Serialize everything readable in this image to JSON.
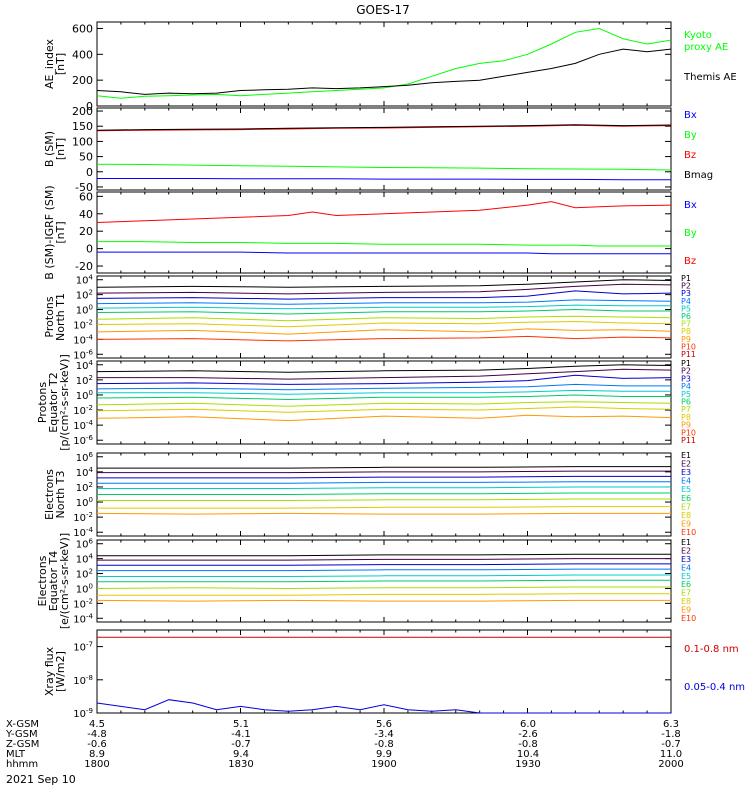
{
  "title": "GOES-17",
  "date_label": "2021 Sep 10",
  "orbit_table": {
    "labels": [
      "X-GSM",
      "Y-GSM",
      "Z-GSM",
      "MLT",
      "hhmm"
    ],
    "columns": [
      [
        "4.5",
        "-4.8",
        "-0.6",
        "8.9",
        "1800"
      ],
      [
        "5.1",
        "-4.1",
        "-0.7",
        "9.4",
        "1830"
      ],
      [
        "5.6",
        "-3.4",
        "-0.8",
        "9.9",
        "1900"
      ],
      [
        "6.0",
        "-2.6",
        "-0.8",
        "10.4",
        "1930"
      ],
      [
        "6.3",
        "-1.8",
        "-0.7",
        "11.0",
        "2000"
      ]
    ]
  },
  "colors": {
    "black": "#000000",
    "blue": "#0000ff",
    "green": "#00ff00",
    "red": "#ff0000",
    "dark_red": "#990000",
    "xray_red": "#cc0000",
    "xray_blue": "#0000dd",
    "proton_channels": [
      "#000000",
      "#440044",
      "#0000cc",
      "#0077ff",
      "#00cccc",
      "#00cc66",
      "#aadd00",
      "#ddcc00",
      "#ff9900",
      "#ff3300",
      "#cc0000"
    ],
    "electron_channels": [
      "#000000",
      "#440044",
      "#0000cc",
      "#0077ff",
      "#00cccc",
      "#00cc66",
      "#aadd00",
      "#ddcc00",
      "#ff9900",
      "#ff3300"
    ]
  },
  "chart_data": [
    {
      "type": "line",
      "panel": "ae_index",
      "ylabel": [
        "AE_index",
        "[nT]"
      ],
      "ylim": [
        0,
        650
      ],
      "yticks": [
        {
          "v": 0,
          "label": "0"
        },
        {
          "v": 200,
          "label": "200"
        },
        {
          "v": 400,
          "label": "400"
        },
        {
          "v": 600,
          "label": "600"
        }
      ],
      "x": [
        0,
        5,
        10,
        15,
        20,
        25,
        30,
        35,
        40,
        45,
        50,
        55,
        60,
        65,
        70,
        75,
        80,
        85,
        90,
        95,
        100,
        105,
        110,
        115,
        120
      ],
      "series": [
        {
          "name": "Kyoto proxy AE",
          "legend_lines": [
            "Kyoto",
            "proxy AE"
          ],
          "color": "green",
          "values": [
            80,
            60,
            75,
            80,
            85,
            90,
            80,
            90,
            100,
            110,
            120,
            130,
            140,
            170,
            230,
            290,
            330,
            350,
            400,
            480,
            570,
            600,
            520,
            480,
            510
          ]
        },
        {
          "name": "Themis AE",
          "legend_lines": [
            "Themis AE"
          ],
          "color": "black",
          "values": [
            120,
            110,
            90,
            100,
            95,
            100,
            120,
            125,
            130,
            140,
            135,
            140,
            150,
            160,
            180,
            190,
            200,
            230,
            260,
            290,
            330,
            400,
            440,
            420,
            440
          ]
        }
      ]
    },
    {
      "type": "line",
      "panel": "b_sm",
      "ylabel": [
        "B (SM)",
        "[nT]"
      ],
      "ylim": [
        -60,
        210
      ],
      "yticks": [
        {
          "v": -50,
          "label": "-50"
        },
        {
          "v": 0,
          "label": "0"
        },
        {
          "v": 50,
          "label": "50"
        },
        {
          "v": 100,
          "label": "100"
        },
        {
          "v": 150,
          "label": "150"
        },
        {
          "v": 200,
          "label": "200"
        }
      ],
      "x": [
        0,
        10,
        20,
        30,
        40,
        50,
        60,
        70,
        80,
        90,
        100,
        110,
        120
      ],
      "series": [
        {
          "name": "Bx",
          "legend_lines": [
            "Bx"
          ],
          "color": "blue",
          "values": [
            -22,
            -22,
            -22,
            -23,
            -23,
            -23,
            -24,
            -24,
            -24,
            -25,
            -25,
            -26,
            -26
          ]
        },
        {
          "name": "By",
          "legend_lines": [
            "By"
          ],
          "color": "green",
          "values": [
            25,
            24,
            22,
            20,
            18,
            16,
            14,
            13,
            12,
            10,
            9,
            8,
            6
          ]
        },
        {
          "name": "Bz",
          "legend_lines": [
            "Bz"
          ],
          "color": "red",
          "values": [
            135,
            137,
            138,
            139,
            141,
            143,
            144,
            146,
            148,
            150,
            153,
            150,
            152
          ]
        },
        {
          "name": "Bmag",
          "legend_lines": [
            "Bmag"
          ],
          "color": "black",
          "values": [
            137,
            139,
            140,
            141,
            143,
            145,
            146,
            148,
            150,
            152,
            155,
            152,
            154
          ]
        }
      ]
    },
    {
      "type": "line",
      "panel": "b_igrf",
      "ylabel": [
        "B (SM)-IGRF (SM)",
        "[nT]"
      ],
      "ylim": [
        -28,
        65
      ],
      "yticks": [
        {
          "v": -20,
          "label": "-20"
        },
        {
          "v": 0,
          "label": "0"
        },
        {
          "v": 20,
          "label": "20"
        },
        {
          "v": 40,
          "label": "40"
        },
        {
          "v": 60,
          "label": "60"
        }
      ],
      "x": [
        0,
        10,
        20,
        30,
        40,
        45,
        50,
        60,
        70,
        80,
        90,
        95,
        100,
        105,
        110,
        120
      ],
      "series": [
        {
          "name": "Bx",
          "legend_lines": [
            "Bx"
          ],
          "color": "blue",
          "values": [
            -4,
            -4,
            -4,
            -4,
            -5,
            -5,
            -5,
            -5,
            -5,
            -5,
            -5,
            -6,
            -6,
            -6,
            -6,
            -6
          ]
        },
        {
          "name": "By",
          "legend_lines": [
            "By"
          ],
          "color": "green",
          "values": [
            8,
            8,
            7,
            7,
            6,
            6,
            6,
            5,
            5,
            5,
            4,
            4,
            4,
            3,
            3,
            3
          ]
        },
        {
          "name": "Bz",
          "legend_lines": [
            "Bz"
          ],
          "color": "red",
          "values": [
            30,
            32,
            34,
            36,
            38,
            42,
            38,
            40,
            42,
            44,
            50,
            54,
            47,
            48,
            49,
            50
          ]
        }
      ]
    },
    {
      "type": "line",
      "panel": "protons_t1",
      "log": true,
      "ylabel": [
        "Protons",
        "North T1"
      ],
      "ylim_exp": [
        -6.5,
        4.5
      ],
      "yticks": [
        {
          "exp": 4
        },
        {
          "exp": 2
        },
        {
          "exp": 0
        },
        {
          "exp": -2
        },
        {
          "exp": -4
        },
        {
          "exp": -6
        }
      ],
      "legend": [
        "P1",
        "P2",
        "P3",
        "P4",
        "P5",
        "P6",
        "P7",
        "P8",
        "P9",
        "P10",
        "P11"
      ],
      "x": [
        0,
        20,
        40,
        60,
        80,
        90,
        100,
        110,
        120
      ],
      "series_log10": [
        [
          3.0,
          3.1,
          3.0,
          3.1,
          3.2,
          3.4,
          3.7,
          4.0,
          3.9
        ],
        [
          2.2,
          2.3,
          2.1,
          2.3,
          2.4,
          2.7,
          3.1,
          3.4,
          3.3
        ],
        [
          1.5,
          1.6,
          1.4,
          1.6,
          1.6,
          1.8,
          2.5,
          2.1,
          2.2
        ],
        [
          0.8,
          0.9,
          0.7,
          0.9,
          0.9,
          1.0,
          1.3,
          1.2,
          1.1
        ],
        [
          0.2,
          0.3,
          0.1,
          0.3,
          0.3,
          0.4,
          0.6,
          0.5,
          0.5
        ],
        [
          -0.4,
          -0.3,
          -0.6,
          -0.3,
          -0.3,
          -0.2,
          0.0,
          -0.2,
          -0.2
        ],
        [
          -1.3,
          -1.1,
          -1.5,
          -1.1,
          -1.2,
          -1.0,
          -0.9,
          -1.0,
          -1.1
        ],
        [
          -2.0,
          -1.9,
          -2.3,
          -1.8,
          -1.9,
          -1.7,
          -1.6,
          -1.8,
          -1.9
        ],
        [
          -3.0,
          -2.8,
          -3.3,
          -2.7,
          -3.0,
          -2.6,
          -2.8,
          -2.7,
          -2.9
        ],
        [
          -4.0,
          -3.9,
          -4.2,
          -3.9,
          -3.8,
          -3.6,
          -3.9,
          -3.7,
          -3.8
        ],
        [
          null,
          null,
          null,
          null,
          null,
          null,
          null,
          null,
          null
        ]
      ]
    },
    {
      "type": "line",
      "panel": "protons_t2",
      "log": true,
      "ylabel": [
        "Protons",
        "Equator T2",
        "[p/(cm²-s-sr-keV)]"
      ],
      "ylim_exp": [
        -6.5,
        4.5
      ],
      "yticks": [
        {
          "exp": 4
        },
        {
          "exp": 2
        },
        {
          "exp": 0
        },
        {
          "exp": -2
        },
        {
          "exp": -4
        },
        {
          "exp": -6
        }
      ],
      "legend": [
        "P1",
        "P2",
        "P3",
        "P4",
        "P5",
        "P6",
        "P7",
        "P8",
        "P9",
        "P10",
        "P11"
      ],
      "x": [
        0,
        20,
        40,
        60,
        80,
        90,
        100,
        110,
        120
      ],
      "series_log10": [
        [
          3.1,
          3.2,
          3.0,
          3.2,
          3.3,
          3.5,
          3.8,
          4.0,
          3.9
        ],
        [
          2.3,
          2.3,
          2.1,
          2.3,
          2.5,
          2.8,
          3.1,
          3.4,
          3.3
        ],
        [
          1.5,
          1.6,
          1.4,
          1.5,
          1.7,
          1.9,
          2.6,
          2.2,
          2.3
        ],
        [
          0.8,
          0.9,
          0.7,
          0.9,
          1.0,
          1.1,
          1.4,
          1.2,
          1.2
        ],
        [
          0.3,
          0.3,
          0.1,
          0.3,
          0.3,
          0.4,
          0.6,
          0.5,
          0.5
        ],
        [
          -0.4,
          -0.3,
          -0.6,
          -0.3,
          -0.3,
          -0.2,
          0.0,
          -0.2,
          -0.2
        ],
        [
          -1.3,
          -1.1,
          -1.5,
          -1.1,
          -1.2,
          -1.0,
          -0.9,
          -1.0,
          -1.1
        ],
        [
          -2.1,
          -1.9,
          -2.3,
          -1.9,
          -2.0,
          -1.8,
          -1.6,
          -1.8,
          -1.9
        ],
        [
          -3.1,
          -2.9,
          -3.4,
          -2.8,
          -3.1,
          -2.7,
          -2.9,
          -2.8,
          -3.0
        ],
        [
          null,
          null,
          null,
          null,
          null,
          null,
          null,
          null,
          null
        ],
        [
          null,
          null,
          null,
          null,
          null,
          null,
          null,
          null,
          null
        ]
      ]
    },
    {
      "type": "line",
      "panel": "electrons_t3",
      "log": true,
      "ylabel": [
        "Electrons",
        "North T3"
      ],
      "ylim_exp": [
        -4.5,
        6.5
      ],
      "yticks": [
        {
          "exp": 6
        },
        {
          "exp": 4
        },
        {
          "exp": 2
        },
        {
          "exp": 0
        },
        {
          "exp": -2
        },
        {
          "exp": -4
        }
      ],
      "legend": [
        "E1",
        "E2",
        "E3",
        "E4",
        "E5",
        "E6",
        "E7",
        "E8",
        "E9",
        "E10"
      ],
      "x": [
        0,
        20,
        40,
        60,
        80,
        100,
        120
      ],
      "series_log10": [
        [
          4.5,
          4.5,
          4.5,
          4.6,
          4.6,
          4.7,
          4.7
        ],
        [
          3.9,
          3.9,
          3.9,
          4.0,
          4.0,
          4.1,
          4.1
        ],
        [
          3.2,
          3.2,
          3.2,
          3.3,
          3.3,
          3.4,
          3.4
        ],
        [
          2.5,
          2.5,
          2.5,
          2.6,
          2.6,
          2.7,
          2.7
        ],
        [
          1.8,
          1.8,
          1.8,
          1.9,
          1.9,
          2.0,
          2.0
        ],
        [
          1.0,
          1.0,
          1.0,
          1.1,
          1.1,
          1.2,
          1.2
        ],
        [
          0.2,
          0.2,
          0.2,
          0.3,
          0.3,
          0.4,
          0.4
        ],
        [
          -0.8,
          -0.8,
          -0.8,
          -0.7,
          -0.7,
          -0.6,
          -0.6
        ],
        [
          -1.5,
          -1.6,
          -1.5,
          -1.6,
          -1.6,
          -1.5,
          -1.5
        ],
        [
          null,
          null,
          null,
          null,
          null,
          null,
          null
        ]
      ]
    },
    {
      "type": "line",
      "panel": "electrons_t4",
      "log": true,
      "ylabel": [
        "Electrons",
        "Equator T4",
        "[e/(cm²-s-sr-keV)]"
      ],
      "ylim_exp": [
        -4.5,
        6.5
      ],
      "yticks": [
        {
          "exp": 6
        },
        {
          "exp": 4
        },
        {
          "exp": 2
        },
        {
          "exp": 0
        },
        {
          "exp": -2
        },
        {
          "exp": -4
        }
      ],
      "legend": [
        "E1",
        "E2",
        "E3",
        "E4",
        "E5",
        "E6",
        "E7",
        "E8",
        "E9",
        "E10"
      ],
      "x": [
        0,
        20,
        40,
        60,
        80,
        100,
        120
      ],
      "series_log10": [
        [
          4.4,
          4.4,
          4.4,
          4.5,
          4.5,
          4.6,
          4.6
        ],
        [
          3.8,
          3.8,
          3.8,
          3.9,
          3.9,
          4.0,
          4.0
        ],
        [
          3.1,
          3.1,
          3.1,
          3.2,
          3.2,
          3.3,
          3.3
        ],
        [
          2.4,
          2.4,
          2.4,
          2.5,
          2.5,
          2.6,
          2.6
        ],
        [
          1.6,
          1.6,
          1.6,
          1.7,
          1.7,
          1.8,
          1.8
        ],
        [
          0.9,
          0.9,
          0.9,
          1.0,
          1.0,
          1.1,
          1.1
        ],
        [
          0.0,
          0.1,
          0.0,
          0.1,
          0.1,
          0.2,
          0.2
        ],
        [
          -0.9,
          -0.9,
          -0.9,
          -0.8,
          -0.8,
          -0.7,
          -0.7
        ],
        [
          -1.6,
          -1.7,
          -1.6,
          -1.7,
          -1.7,
          -1.6,
          -1.6
        ],
        [
          null,
          null,
          null,
          null,
          null,
          null,
          null
        ]
      ]
    },
    {
      "type": "line",
      "panel": "xray_flux",
      "log": true,
      "ylabel": [
        "Xray flux",
        "[W/m2]"
      ],
      "ylim_exp": [
        -9.0,
        -6.5
      ],
      "yticks": [
        {
          "exp": -7
        },
        {
          "exp": -8
        },
        {
          "exp": -9
        }
      ],
      "x": [
        0,
        5,
        10,
        15,
        20,
        25,
        30,
        35,
        40,
        45,
        50,
        55,
        60,
        65,
        70,
        75,
        80,
        85,
        90,
        95,
        100,
        105,
        110,
        115,
        120
      ],
      "series": [
        {
          "name": "0.1-0.8 nm",
          "legend_lines": [
            "0.1-0.8 nm"
          ],
          "color": "xray_red",
          "log10": [
            -6.72,
            -6.72,
            -6.72,
            -6.72,
            -6.72,
            -6.72,
            -6.72,
            -6.72,
            -6.72,
            -6.72,
            -6.72,
            -6.72,
            -6.72,
            -6.72,
            -6.72,
            -6.72,
            -6.72,
            -6.72,
            -6.72,
            -6.72,
            -6.72,
            -6.72,
            -6.72,
            -6.72,
            -6.72
          ]
        },
        {
          "name": "0.05-0.4 nm",
          "legend_lines": [
            "0.05-0.4 nm"
          ],
          "color": "xray_blue",
          "log10": [
            -8.7,
            -8.8,
            -8.9,
            -8.6,
            -8.7,
            -8.9,
            -8.8,
            -8.9,
            -8.95,
            -8.9,
            -8.8,
            -8.9,
            -8.75,
            -8.9,
            -8.95,
            -8.9,
            -9.0,
            -9.0,
            -9.0,
            -9.0,
            -9.0,
            -9.0,
            -9.0,
            -9.0,
            -9.0
          ]
        }
      ]
    }
  ]
}
